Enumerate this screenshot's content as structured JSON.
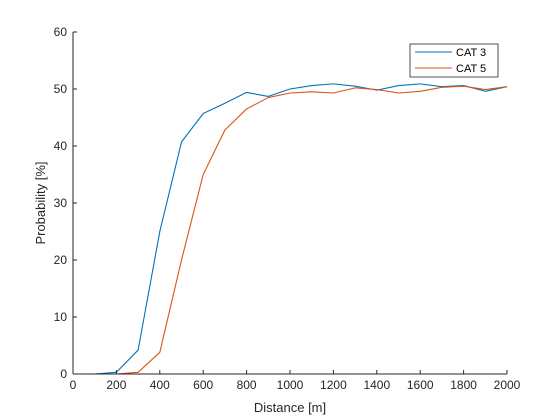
{
  "chart_data": {
    "type": "line",
    "xlabel": "Distance [m]",
    "ylabel": "Probability [%]",
    "xlim": [
      0,
      2000
    ],
    "ylim": [
      0,
      60
    ],
    "xticks": [
      0,
      200,
      400,
      600,
      800,
      1000,
      1200,
      1400,
      1600,
      1800,
      2000
    ],
    "yticks": [
      0,
      10,
      20,
      30,
      40,
      50,
      60
    ],
    "x": [
      100,
      200,
      300,
      400,
      500,
      600,
      700,
      800,
      900,
      1000,
      1100,
      1200,
      1300,
      1400,
      1500,
      1600,
      1700,
      1800,
      1900,
      2000
    ],
    "grid": false,
    "legend_position": "top-right",
    "series": [
      {
        "name": "CAT 3",
        "color": "#0072BD",
        "values": [
          0,
          0.3,
          4.2,
          25,
          40.7,
          45.7,
          47.5,
          49.4,
          48.7,
          50.0,
          50.6,
          50.9,
          50.5,
          49.8,
          50.6,
          50.9,
          50.4,
          50.6,
          49.6,
          50.4
        ]
      },
      {
        "name": "CAT 5",
        "color": "#D95319",
        "values": [
          0,
          0,
          0.3,
          3.8,
          20,
          35,
          42.8,
          46.5,
          48.5,
          49.3,
          49.5,
          49.3,
          50.2,
          49.9,
          49.3,
          49.6,
          50.3,
          50.5,
          49.9,
          50.4
        ]
      }
    ]
  }
}
